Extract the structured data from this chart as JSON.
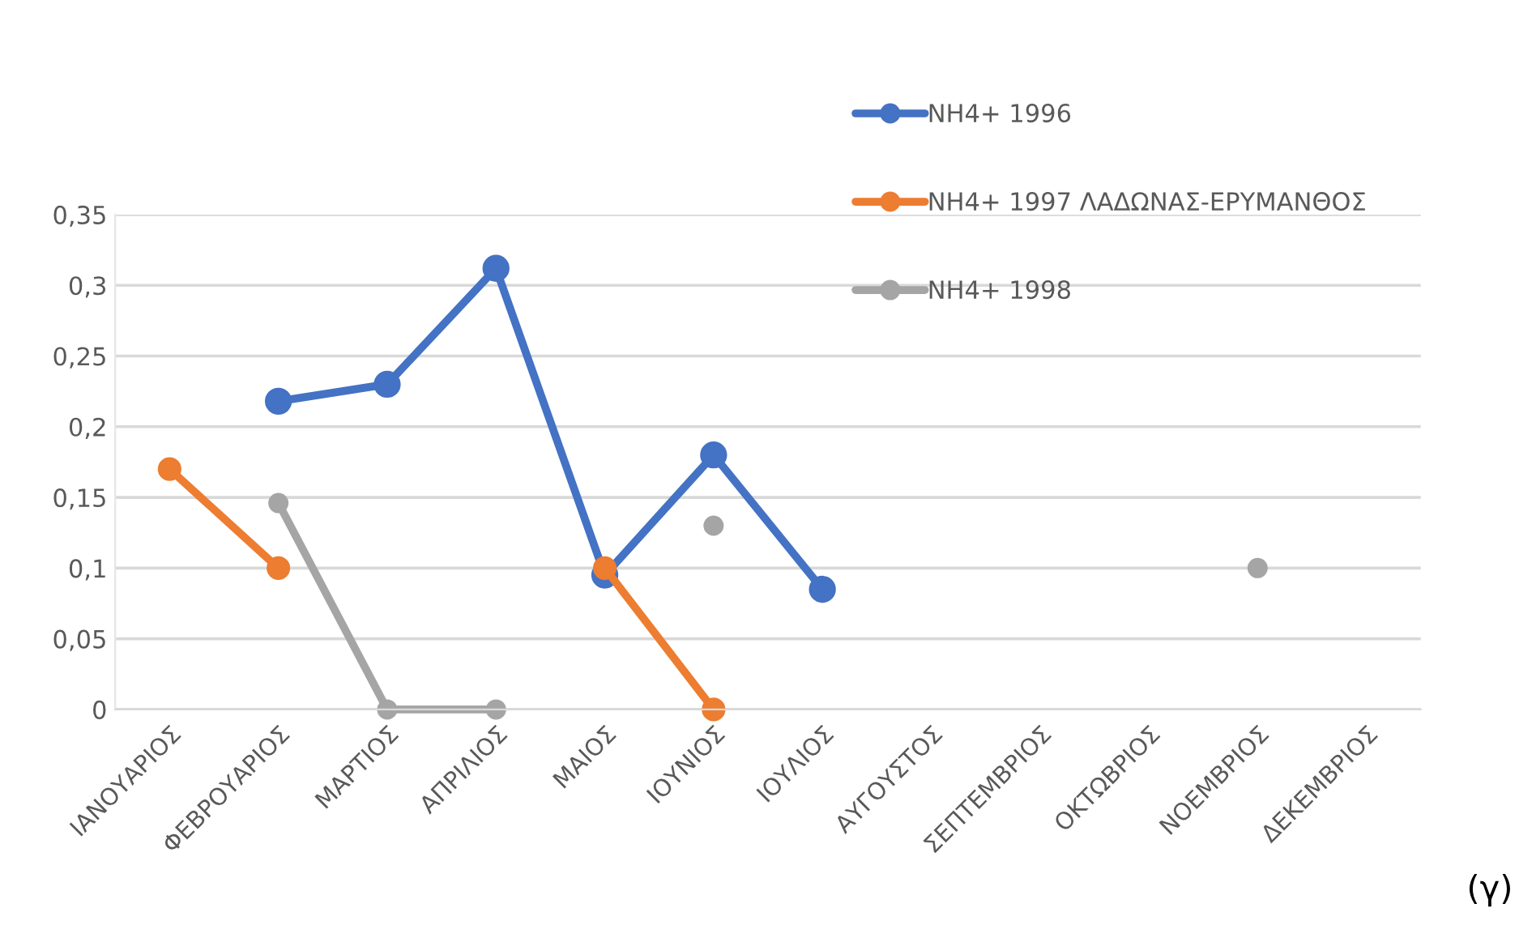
{
  "chart_data": {
    "type": "line",
    "categories": [
      "ΙΑΝΟΥΑΡΙΟΣ",
      "ΦΕΒΡΟΥΑΡΙΟΣ",
      "ΜΑΡΤΙΟΣ",
      "ΑΠΡΙΛΙΟΣ",
      "ΜΑΙΟΣ",
      "ΙΟΥΝΙΟΣ",
      "ΙΟΥΛΙΟΣ",
      "ΑΥΓΟΥΣΤΟΣ",
      "ΣΕΠΤΕΜΒΡΙΟΣ",
      "ΟΚΤΩΒΡΙΟΣ",
      "ΝΟΕΜΒΡΙΟΣ",
      "ΔΕΚΕΜΒΡΙΟΣ"
    ],
    "series": [
      {
        "name": "NH4+ 1996",
        "color": "#4472c4",
        "values": [
          null,
          0.218,
          0.23,
          0.312,
          0.095,
          0.18,
          0.085,
          null,
          null,
          null,
          null,
          null
        ]
      },
      {
        "name": "NH4+ 1997 ΛΑΔΩΝΑΣ-ΕΡΥΜΑΝΘΟΣ",
        "color": "#ed7d31",
        "values": [
          0.17,
          0.1,
          null,
          null,
          0.1,
          0,
          null,
          null,
          null,
          null,
          null,
          null
        ]
      },
      {
        "name": "NH4+ 1998",
        "color": "#a5a5a5",
        "values": [
          null,
          0.146,
          0,
          0,
          null,
          0.13,
          null,
          null,
          null,
          null,
          0.1,
          null
        ]
      }
    ],
    "ylim": [
      0,
      0.35
    ],
    "yticks": [
      {
        "value": 0,
        "label": "0"
      },
      {
        "value": 0.05,
        "label": "0,05"
      },
      {
        "value": 0.1,
        "label": "0,1"
      },
      {
        "value": 0.15,
        "label": "0,15"
      },
      {
        "value": 0.2,
        "label": "0,2"
      },
      {
        "value": 0.25,
        "label": "0,25"
      },
      {
        "value": 0.3,
        "label": "0,3"
      },
      {
        "value": 0.35,
        "label": "0,35"
      }
    ],
    "grid": "y",
    "legend": "top right",
    "marker": "circle",
    "line_style": "solid",
    "annotations": [
      "(γ)"
    ]
  }
}
